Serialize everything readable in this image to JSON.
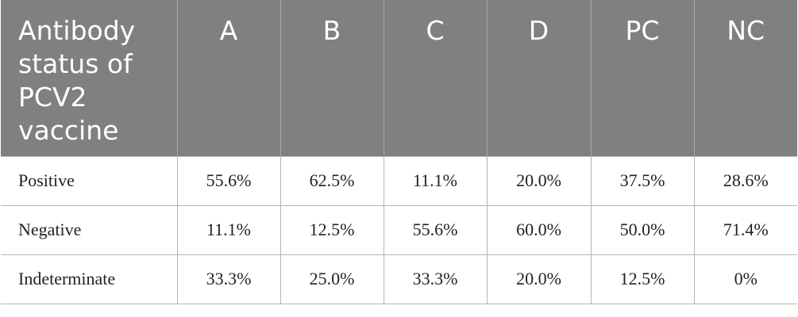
{
  "table": {
    "header": [
      "Antibody status of PCV2 vaccine",
      "A",
      "B",
      "C",
      "D",
      "PC",
      "NC"
    ],
    "rows": [
      [
        "Positive",
        "55.6%",
        "62.5%",
        "11.1%",
        "20.0%",
        "37.5%",
        "28.6%"
      ],
      [
        "Negative",
        "11.1%",
        "12.5%",
        "55.6%",
        "60.0%",
        "50.0%",
        "71.4%"
      ],
      [
        "Indeterminate",
        "33.3%",
        "25.0%",
        "33.3%",
        "20.0%",
        "12.5%",
        "0%"
      ]
    ]
  }
}
